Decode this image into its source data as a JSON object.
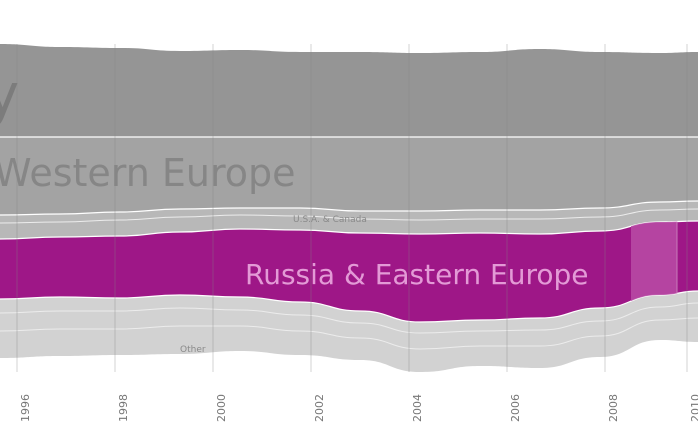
{
  "chart_data": {
    "type": "area",
    "title": "",
    "xlabel": "",
    "ylabel": "",
    "x_ticks": [
      "1996",
      "1998",
      "2000",
      "2002",
      "2004",
      "2006",
      "2008",
      "2010"
    ],
    "series": [
      {
        "name": "y",
        "color": "#959595"
      },
      {
        "name": "Western Europe",
        "color": "#a3a3a3"
      },
      {
        "name": "U.S.A. & Canada",
        "color": "#b8b8b8"
      },
      {
        "name": "Russia & Eastern Europe",
        "color": "#9e1787",
        "highlighted": true
      },
      {
        "name": "Other",
        "color": "#d2d2d2"
      }
    ],
    "colors": {
      "highlight": "#9e1787",
      "highlight_label": "#e39ad6",
      "highlight_band": "#b84ca6",
      "grid": "#808080"
    },
    "grid": true,
    "legend": "none"
  }
}
